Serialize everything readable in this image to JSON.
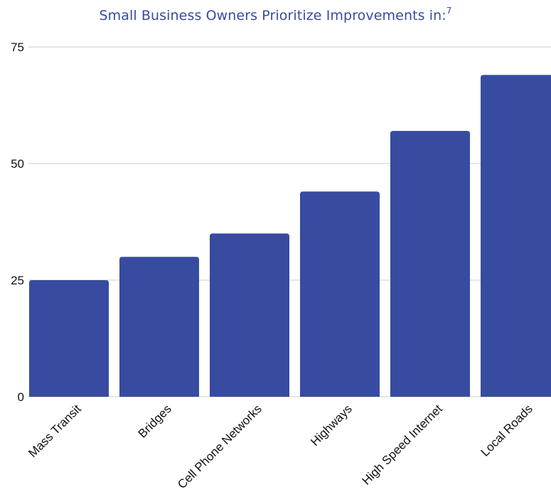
{
  "chart_data": {
    "type": "bar",
    "title": "Small Business Owners Prioritize Improvements in:",
    "title_superscript": "7",
    "categories": [
      "Mass Transit",
      "Bridges",
      "Cell Phone Networks",
      "Highways",
      "High Speed Internet",
      "Local Roads"
    ],
    "values": [
      25,
      30,
      35,
      44,
      57,
      69
    ],
    "ylim": [
      0,
      75
    ],
    "yticks": [
      "0",
      "25",
      "50",
      "75"
    ],
    "xlabel": "",
    "ylabel": "",
    "grid": true,
    "bar_color": "#374ba0",
    "grid_color": "#cccccc"
  }
}
